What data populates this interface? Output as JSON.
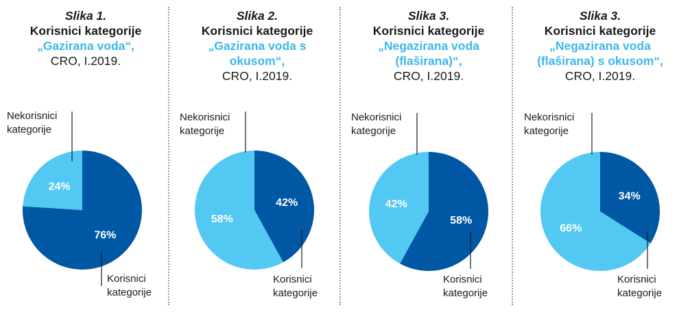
{
  "colors": {
    "users": "#0057a4",
    "non_users": "#53c8f2",
    "title_accent": "#3fb7e9"
  },
  "chart_data": [
    {
      "type": "pie",
      "fig_no": "Slika 1.",
      "title_line": "Korisnici kategorije",
      "product_lines": [
        "„Gazirana voda“,"
      ],
      "meta": "CRO, I.2019.",
      "labels": {
        "non_users": [
          "Nekorisnici",
          "kategorije"
        ],
        "users": [
          "Korisnici",
          "kategorije"
        ]
      },
      "slices": [
        {
          "name": "Korisnici kategorije",
          "value": 76,
          "label": "76%"
        },
        {
          "name": "Nekorisnici kategorije",
          "value": 24,
          "label": "24%"
        }
      ]
    },
    {
      "type": "pie",
      "fig_no": "Slika 2.",
      "title_line": "Korisnici kategorije",
      "product_lines": [
        "„Gazirana voda s",
        "okusom“,"
      ],
      "meta": "CRO, I.2019.",
      "labels": {
        "non_users": [
          "Nekorisnici",
          "kategorije"
        ],
        "users": [
          "Korisnici",
          "kategorije"
        ]
      },
      "slices": [
        {
          "name": "Korisnici kategorije",
          "value": 42,
          "label": "42%"
        },
        {
          "name": "Nekorisnici kategorije",
          "value": 58,
          "label": "58%"
        }
      ]
    },
    {
      "type": "pie",
      "fig_no": "Slika 3.",
      "title_line": "Korisnici kategorije",
      "product_lines": [
        "„Negazirana voda",
        "(flaširana)“,"
      ],
      "meta": "CRO, I.2019.",
      "labels": {
        "non_users": [
          "Nekorisnici",
          "kategorije"
        ],
        "users": [
          "Korisnici",
          "kategorije"
        ]
      },
      "slices": [
        {
          "name": "Korisnici kategorije",
          "value": 58,
          "label": "58%"
        },
        {
          "name": "Nekorisnici kategorije",
          "value": 42,
          "label": "42%"
        }
      ]
    },
    {
      "type": "pie",
      "fig_no": "Slika 3.",
      "title_line": "Korisnici kategorije",
      "product_lines": [
        "„Negazirana voda",
        "(flaširana) s okusom“,"
      ],
      "meta": "CRO, I.2019.",
      "labels": {
        "non_users": [
          "Nekorisnici",
          "kategorije"
        ],
        "users": [
          "Korisnici",
          "kategorije"
        ]
      },
      "slices": [
        {
          "name": "Korisnici kategorije",
          "value": 34,
          "label": "34%"
        },
        {
          "name": "Nekorisnici kategorije",
          "value": 66,
          "label": "66%"
        }
      ]
    }
  ]
}
